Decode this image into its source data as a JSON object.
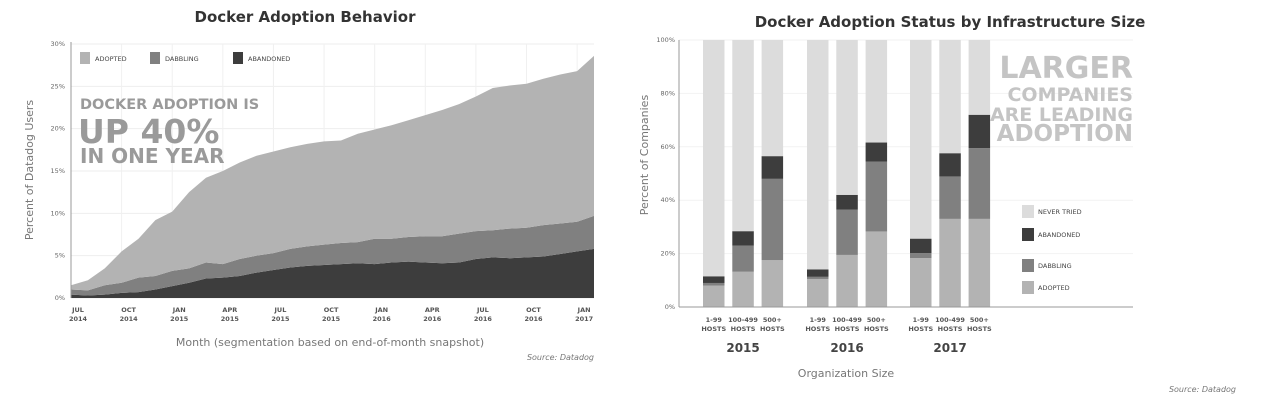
{
  "chart_data": [
    {
      "type": "area",
      "stacked": true,
      "title": "Docker Adoption Behavior",
      "xlabel": "Month (segmentation based on end-of-month snapshot)",
      "ylabel": "Percent of Datadog Users",
      "source": "Source: Datadog",
      "annotation": [
        "DOCKER ADOPTION IS",
        "UP 40%",
        "IN ONE YEAR"
      ],
      "ylim": [
        0,
        30
      ],
      "yticks": [
        "0%",
        "5%",
        "10%",
        "15%",
        "20%",
        "25%",
        "30%"
      ],
      "grid": true,
      "legend_position": "top-left",
      "x": [
        "2014-07",
        "2014-08",
        "2014-09",
        "2014-10",
        "2014-11",
        "2014-12",
        "2015-01",
        "2015-02",
        "2015-03",
        "2015-04",
        "2015-05",
        "2015-06",
        "2015-07",
        "2015-08",
        "2015-09",
        "2015-10",
        "2015-11",
        "2015-12",
        "2016-01",
        "2016-02",
        "2016-03",
        "2016-04",
        "2016-05",
        "2016-06",
        "2016-07",
        "2016-08",
        "2016-09",
        "2016-10",
        "2016-11",
        "2016-12",
        "2017-01",
        "2017-02"
      ],
      "xticks": [
        {
          "month": "2014-07",
          "line1": "JUL",
          "line2": "2014"
        },
        {
          "month": "2014-10",
          "line1": "OCT",
          "line2": "2014"
        },
        {
          "month": "2015-01",
          "line1": "JAN",
          "line2": "2015"
        },
        {
          "month": "2015-04",
          "line1": "APR",
          "line2": "2015"
        },
        {
          "month": "2015-07",
          "line1": "JUL",
          "line2": "2015"
        },
        {
          "month": "2015-10",
          "line1": "OCT",
          "line2": "2015"
        },
        {
          "month": "2016-01",
          "line1": "JAN",
          "line2": "2016"
        },
        {
          "month": "2016-04",
          "line1": "APR",
          "line2": "2016"
        },
        {
          "month": "2016-07",
          "line1": "JUL",
          "line2": "2016"
        },
        {
          "month": "2016-10",
          "line1": "OCT",
          "line2": "2016"
        },
        {
          "month": "2017-01",
          "line1": "JAN",
          "line2": "2017"
        }
      ],
      "series": [
        {
          "name": "ABANDONED",
          "color": "#3d3d3d",
          "values": [
            0.4,
            0.3,
            0.4,
            0.6,
            0.7,
            1.0,
            1.4,
            1.8,
            2.3,
            2.4,
            2.6,
            3.0,
            3.3,
            3.6,
            3.8,
            3.9,
            4.0,
            4.1,
            4.0,
            4.2,
            4.3,
            4.2,
            4.1,
            4.2,
            4.6,
            4.8,
            4.7,
            4.8,
            4.9,
            5.2,
            5.5,
            5.8
          ]
        },
        {
          "name": "DABBLING",
          "color": "#808080",
          "values": [
            0.6,
            0.6,
            1.1,
            1.2,
            1.7,
            1.6,
            1.8,
            1.7,
            1.9,
            1.6,
            2.0,
            2.0,
            2.0,
            2.2,
            2.3,
            2.4,
            2.5,
            2.5,
            3.0,
            2.8,
            2.9,
            3.1,
            3.2,
            3.4,
            3.3,
            3.2,
            3.5,
            3.5,
            3.7,
            3.6,
            3.5,
            3.9
          ]
        },
        {
          "name": "ADOPTED",
          "color": "#b3b3b3",
          "values": [
            0.5,
            1.2,
            2.0,
            3.7,
            4.6,
            6.6,
            7.0,
            9.0,
            10.0,
            11.0,
            11.4,
            11.8,
            12.0,
            12.0,
            12.1,
            12.2,
            12.1,
            12.8,
            12.9,
            13.4,
            13.8,
            14.3,
            14.9,
            15.3,
            15.9,
            16.8,
            16.9,
            17.0,
            17.3,
            17.6,
            17.8,
            18.9
          ]
        }
      ],
      "legend_order": [
        "ADOPTED",
        "DABBLING",
        "ABANDONED"
      ]
    },
    {
      "type": "bar",
      "stacked": true,
      "title": "Docker Adoption Status by Infrastructure Size",
      "xlabel": "Organization Size",
      "ylabel": "Percent of Companies",
      "source": "Source: Datadog",
      "annotation": [
        "LARGER",
        "COMPANIES",
        "ARE LEADING",
        "ADOPTION"
      ],
      "ylim": [
        0,
        100
      ],
      "yticks": [
        "0%",
        "20%",
        "40%",
        "60%",
        "80%",
        "100%"
      ],
      "grid": true,
      "legend_position": "right",
      "groups": [
        "2015",
        "2016",
        "2017"
      ],
      "categories": [
        [
          "1-99",
          "HOSTS"
        ],
        [
          "100-499",
          "HOSTS"
        ],
        [
          "500+",
          "HOSTS"
        ]
      ],
      "series": [
        {
          "name": "ADOPTED",
          "color": "#b3b3b3",
          "values": [
            [
              8.0,
              13.2,
              17.6
            ],
            [
              10.5,
              19.5,
              28.3
            ],
            [
              18.3,
              33.0,
              33.0
            ]
          ]
        },
        {
          "name": "DABBLING",
          "color": "#808080",
          "values": [
            [
              1.0,
              9.8,
              30.4
            ],
            [
              0.8,
              17.0,
              26.2
            ],
            [
              1.9,
              15.9,
              26.5
            ]
          ]
        },
        {
          "name": "ABANDONED",
          "color": "#3d3d3d",
          "values": [
            [
              2.5,
              5.4,
              8.5
            ],
            [
              2.8,
              5.5,
              7.1
            ],
            [
              5.4,
              8.7,
              12.5
            ]
          ]
        },
        {
          "name": "NEVER TRIED",
          "color": "#dcdcdc",
          "values": [
            [
              88.5,
              71.6,
              43.5
            ],
            [
              85.9,
              58.0,
              38.4
            ],
            [
              74.4,
              42.4,
              28.0
            ]
          ]
        }
      ],
      "legend_order": [
        "NEVER TRIED",
        "ABANDONED",
        "DABBLING",
        "ADOPTED"
      ]
    }
  ]
}
